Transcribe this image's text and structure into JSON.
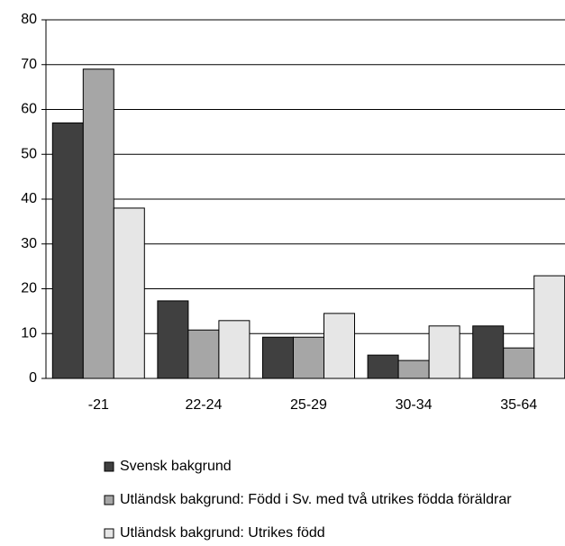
{
  "chart_data": {
    "type": "bar",
    "categories": [
      "-21",
      "22-24",
      "25-29",
      "30-34",
      "35-64"
    ],
    "series": [
      {
        "name": "Svensk bakgrund",
        "color": "#404040",
        "values": [
          57,
          17.3,
          9.2,
          5.2,
          11.7
        ]
      },
      {
        "name": "Utländsk bakgrund: Född i Sv. med två utrikes födda föräldrar",
        "color": "#a6a6a6",
        "values": [
          69,
          10.8,
          9.2,
          4,
          6.8
        ]
      },
      {
        "name": "Utländsk bakgrund: Utrikes född",
        "color": "#e6e6e6",
        "values": [
          38,
          12.9,
          14.5,
          11.7,
          22.9
        ]
      }
    ],
    "ylim": [
      0,
      80
    ],
    "yticks": [
      0,
      10,
      20,
      30,
      40,
      50,
      60,
      70,
      80
    ],
    "grid": true,
    "legend": "bottom"
  }
}
